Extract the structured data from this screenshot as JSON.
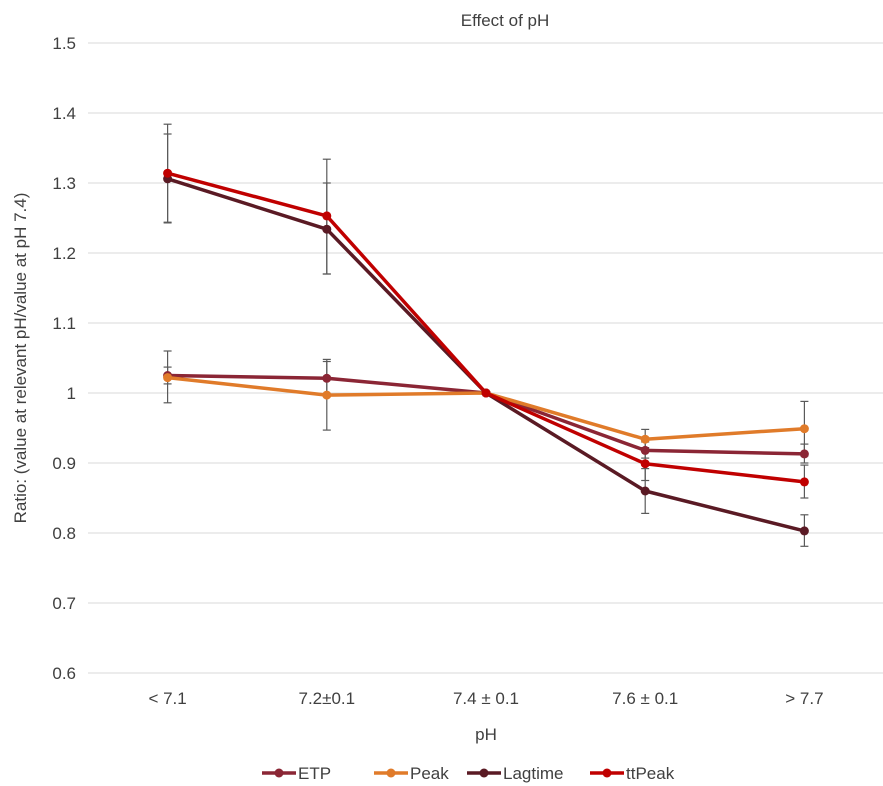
{
  "chart_data": {
    "type": "line",
    "title": "Effect of pH",
    "xlabel": "pH",
    "ylabel": "Ratio: (value at relevant pH/value at pH 7.4)",
    "categories": [
      "< 7.1",
      "7.2±0.1",
      "7.4 ± 0.1",
      "7.6 ± 0.1",
      "> 7.7"
    ],
    "ylim": [
      0.6,
      1.5
    ],
    "yticks": [
      "0.6",
      "0.7",
      "0.8",
      "0.9",
      "1",
      "1.1",
      "1.2",
      "1.3",
      "1.4",
      "1.5"
    ],
    "grid": true,
    "legend_position": "bottom",
    "series": [
      {
        "name": "ETP",
        "color": "#8B2635",
        "values": [
          1.025,
          1.021,
          1.0,
          0.918,
          0.913
        ],
        "err_low": [
          1.013,
          0.997,
          1.0,
          0.907,
          0.9
        ],
        "err_high": [
          1.037,
          1.045,
          1.0,
          0.93,
          0.927
        ]
      },
      {
        "name": "Peak",
        "color": "#E07B2A",
        "values": [
          1.022,
          0.997,
          1.0,
          0.934,
          0.949
        ],
        "err_low": [
          0.986,
          0.947,
          1.0,
          0.92,
          0.91
        ],
        "err_high": [
          1.06,
          1.048,
          1.0,
          0.948,
          0.988
        ]
      },
      {
        "name": "Lagtime",
        "color": "#5A1A24",
        "values": [
          1.306,
          1.234,
          1.0,
          0.86,
          0.803
        ],
        "err_low": [
          1.243,
          1.17,
          1.0,
          0.828,
          0.781
        ],
        "err_high": [
          1.37,
          1.3,
          1.0,
          0.892,
          0.826
        ]
      },
      {
        "name": "ttPeak",
        "color": "#C00000",
        "values": [
          1.314,
          1.253,
          1.0,
          0.899,
          0.873
        ],
        "err_low": [
          1.244,
          1.17,
          1.0,
          0.875,
          0.85
        ],
        "err_high": [
          1.384,
          1.334,
          1.0,
          0.922,
          0.897
        ]
      }
    ]
  }
}
